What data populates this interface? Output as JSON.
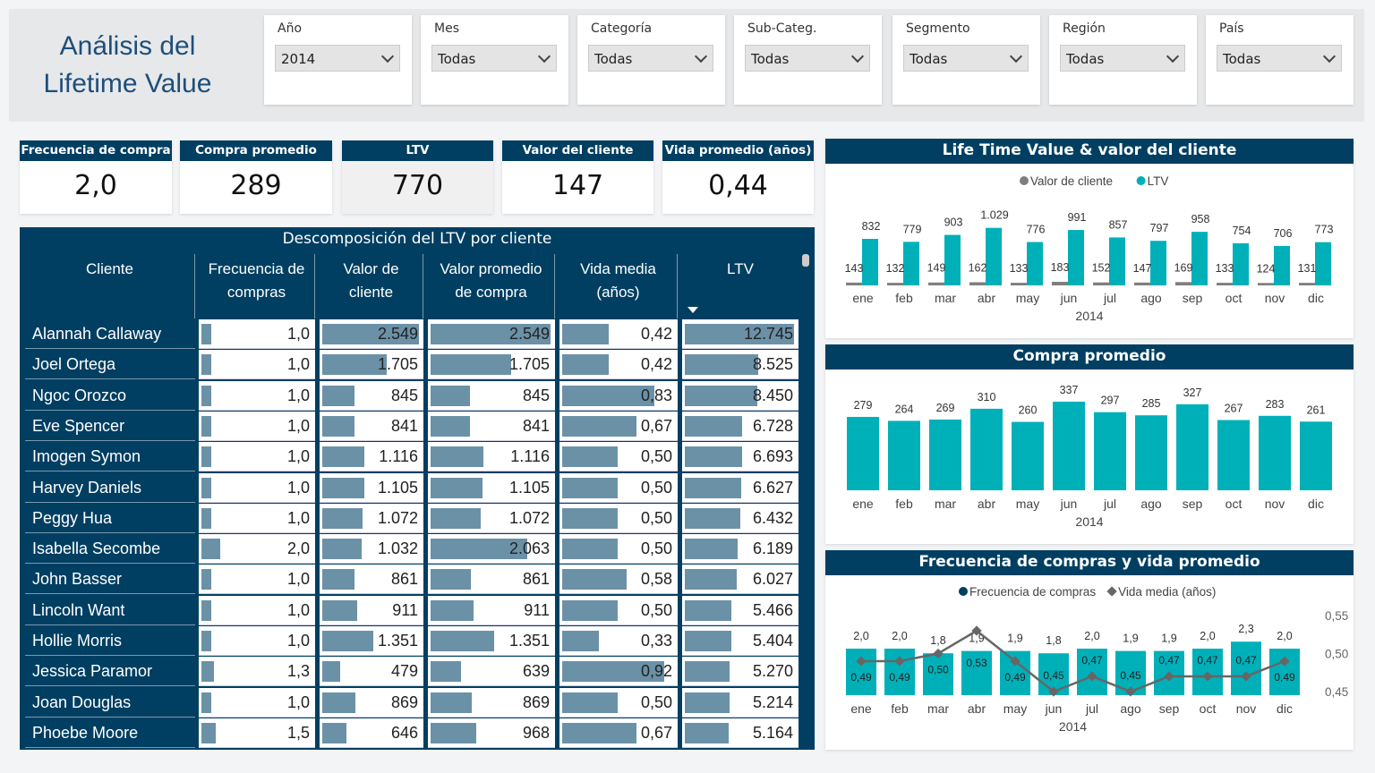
{
  "header": {
    "title": "Análisis del Lifetime Value"
  },
  "slicers": [
    {
      "label": "Año",
      "value": "2014"
    },
    {
      "label": "Mes",
      "value": "Todas"
    },
    {
      "label": "Categoría",
      "value": "Todas"
    },
    {
      "label": "Sub-Categ.",
      "value": "Todas"
    },
    {
      "label": "Segmento",
      "value": "Todas"
    },
    {
      "label": "Región",
      "value": "Todas"
    },
    {
      "label": "País",
      "value": "Todas"
    }
  ],
  "kpis": [
    {
      "label": "Frecuencia de compra",
      "value": "2,0"
    },
    {
      "label": "Compra promedio",
      "value": "289"
    },
    {
      "label": "LTV",
      "value": "770"
    },
    {
      "label": "Valor del cliente",
      "value": "147"
    },
    {
      "label": "Vida promedio (años)",
      "value": "0,44"
    }
  ],
  "table": {
    "title": "Descomposición del LTV por cliente",
    "columns": [
      "Cliente",
      "Frecuencia de compras",
      "Valor de cliente",
      "Valor promedio de compra",
      "Vida media (años)",
      "LTV"
    ],
    "sort": "LTV descending",
    "rows": [
      [
        "Alannah Callaway",
        "1,0",
        "2.549",
        "2.549",
        "0,42",
        "12.745"
      ],
      [
        "Joel Ortega",
        "1,0",
        "1.705",
        "1.705",
        "0,42",
        "8.525"
      ],
      [
        "Ngoc Orozco",
        "1,0",
        "845",
        "845",
        "0,83",
        "8.450"
      ],
      [
        "Eve Spencer",
        "1,0",
        "841",
        "841",
        "0,67",
        "6.728"
      ],
      [
        "Imogen Symon",
        "1,0",
        "1.116",
        "1.116",
        "0,50",
        "6.693"
      ],
      [
        "Harvey Daniels",
        "1,0",
        "1.105",
        "1.105",
        "0,50",
        "6.627"
      ],
      [
        "Peggy Hua",
        "1,0",
        "1.072",
        "1.072",
        "0,50",
        "6.432"
      ],
      [
        "Isabella Secombe",
        "2,0",
        "1.032",
        "2.063",
        "0,50",
        "6.189"
      ],
      [
        "John Basser",
        "1,0",
        "861",
        "861",
        "0,58",
        "6.027"
      ],
      [
        "Lincoln Want",
        "1,0",
        "911",
        "911",
        "0,50",
        "5.466"
      ],
      [
        "Hollie Morris",
        "1,0",
        "1.351",
        "1.351",
        "0,33",
        "5.404"
      ],
      [
        "Jessica Paramor",
        "1,3",
        "479",
        "639",
        "0,92",
        "5.270"
      ],
      [
        "Joan Douglas",
        "1,0",
        "869",
        "869",
        "0,50",
        "5.214"
      ],
      [
        "Phoebe Moore",
        "1,5",
        "646",
        "968",
        "0,67",
        "5.164"
      ]
    ]
  },
  "colors": {
    "navy": "#003f62",
    "teal": "#00b0b9",
    "gray": "#7f7f7f",
    "databar": "#6b91a7",
    "line": "#666666"
  },
  "chart_data": [
    {
      "type": "bar",
      "title": "Life Time Value & valor del cliente",
      "categories": [
        "ene",
        "feb",
        "mar",
        "abr",
        "may",
        "jun",
        "jul",
        "ago",
        "sep",
        "oct",
        "nov",
        "dic"
      ],
      "xgroup": "2014",
      "legend_position": "top",
      "series": [
        {
          "name": "Valor de cliente",
          "values": [
            143,
            132,
            149,
            162,
            133,
            183,
            152,
            147,
            169,
            133,
            124,
            131
          ],
          "labels": [
            "143",
            "132",
            "149",
            "162",
            "133",
            "183",
            "152",
            "147",
            "169",
            "133",
            "124",
            "131"
          ]
        },
        {
          "name": "LTV",
          "values": [
            832,
            779,
            903,
            1029,
            776,
            991,
            857,
            797,
            958,
            754,
            706,
            773
          ],
          "labels": [
            "832",
            "779",
            "903",
            "1.029",
            "776",
            "991",
            "857",
            "797",
            "958",
            "754",
            "706",
            "773"
          ]
        }
      ]
    },
    {
      "type": "bar",
      "title": "Compra promedio",
      "categories": [
        "ene",
        "feb",
        "mar",
        "abr",
        "may",
        "jun",
        "jul",
        "ago",
        "sep",
        "oct",
        "nov",
        "dic"
      ],
      "xgroup": "2014",
      "values": [
        279,
        264,
        269,
        310,
        260,
        337,
        297,
        285,
        327,
        267,
        283,
        261
      ]
    },
    {
      "type": "bar+line",
      "title": "Frecuencia de compras y vida promedio",
      "categories": [
        "ene",
        "feb",
        "mar",
        "abr",
        "may",
        "jun",
        "jul",
        "ago",
        "sep",
        "oct",
        "nov",
        "dic"
      ],
      "xgroup": "2014",
      "legend_position": "top",
      "series": [
        {
          "name": "Frecuencia de compras",
          "type": "bar",
          "values": [
            2.0,
            2.0,
            1.8,
            1.9,
            1.9,
            1.8,
            2.0,
            1.9,
            1.9,
            2.0,
            2.3,
            2.0
          ],
          "labels": [
            "2,0",
            "2,0",
            "1,8",
            "1,9",
            "1,9",
            "1,8",
            "2,0",
            "1,9",
            "1,9",
            "2,0",
            "2,3",
            "2,0"
          ]
        },
        {
          "name": "Vida media (años)",
          "type": "line",
          "values": [
            0.49,
            0.49,
            0.5,
            0.53,
            0.49,
            0.45,
            0.47,
            0.45,
            0.47,
            0.47,
            0.47,
            0.49
          ],
          "labels": [
            "0,49",
            "0,49",
            "0,50",
            "0,53",
            "0,49",
            "0,45",
            "0,47",
            "0,45",
            "0,47",
            "0,47",
            "0,47",
            "0,49"
          ]
        }
      ],
      "y2_ticks": [
        "0,55",
        "0,50",
        "0,45"
      ],
      "y2lim": [
        0.45,
        0.55
      ]
    }
  ]
}
